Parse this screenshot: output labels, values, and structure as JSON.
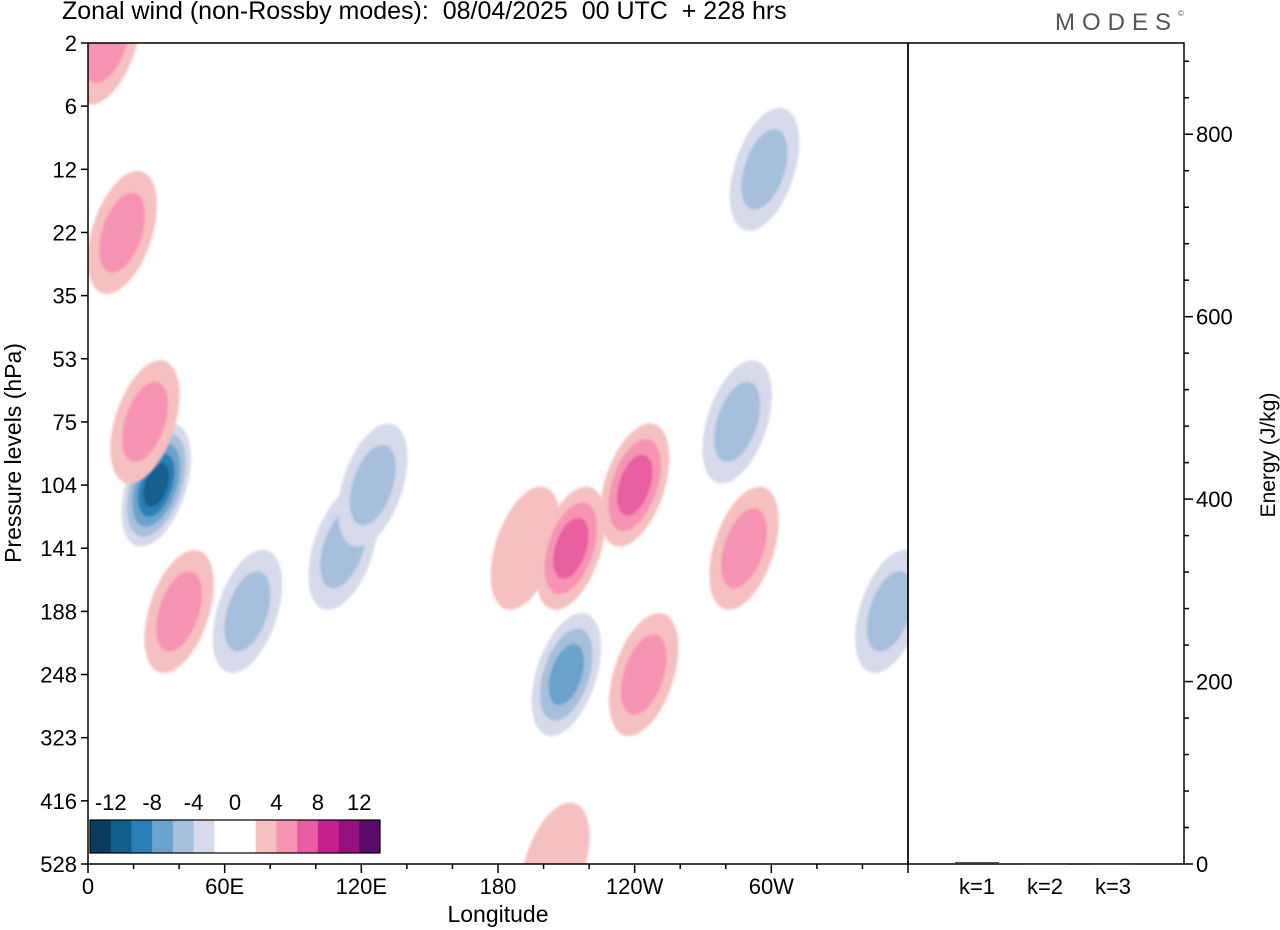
{
  "header": {
    "title": "Zonal wind (non-Rossby modes):  08/04/2025  00 UTC  + 228 hrs",
    "logo": "MODES"
  },
  "chart_data": [
    {
      "type": "heatmap",
      "title": "Zonal wind (non-Rossby modes):  08/04/2025  00 UTC  + 228 hrs",
      "xlabel": "Longitude",
      "ylabel": "Pressure levels (hPa)",
      "x_ticks": [
        "0",
        "60E",
        "120E",
        "180",
        "120W",
        "60W"
      ],
      "y_ticks": [
        "2",
        "6",
        "12",
        "22",
        "35",
        "53",
        "75",
        "104",
        "141",
        "188",
        "248",
        "323",
        "416",
        "528"
      ],
      "colorbar": {
        "labels": [
          "-12",
          "-8",
          "-4",
          "0",
          "4",
          "8",
          "12"
        ],
        "colors": [
          "#0b3c5d",
          "#125f8e",
          "#2b7fb6",
          "#6aa3cc",
          "#a6bfdc",
          "#d6daea",
          "#ffffff",
          "#ffffff",
          "#f7c0c0",
          "#f794b3",
          "#e85ea2",
          "#c62190",
          "#95107f",
          "#5a0a6b"
        ]
      },
      "features": [
        {
          "lon": 8,
          "level": "2",
          "value": 6
        },
        {
          "lon": 30,
          "level": "104",
          "value": -12
        },
        {
          "lon": 25,
          "level": "75",
          "value": 6
        },
        {
          "lon": 15,
          "level": "22",
          "value": 6
        },
        {
          "lon": 70,
          "level": "188",
          "value": -6
        },
        {
          "lon": 112,
          "level": "141",
          "value": -6
        },
        {
          "lon": 125,
          "level": "104",
          "value": -6
        },
        {
          "lon": 40,
          "level": "188",
          "value": 6
        },
        {
          "lon": 192,
          "level": "141",
          "value": 4
        },
        {
          "lon": 212,
          "level": "141",
          "value": 9
        },
        {
          "lon": 240,
          "level": "104",
          "value": 9
        },
        {
          "lon": 210,
          "level": "248",
          "value": -9
        },
        {
          "lon": 244,
          "level": "248",
          "value": 7
        },
        {
          "lon": 285,
          "level": "75",
          "value": -6
        },
        {
          "lon": 297,
          "level": "12",
          "value": -6
        },
        {
          "lon": 288,
          "level": "141",
          "value": 6
        },
        {
          "lon": 352,
          "level": "188",
          "value": -6
        },
        {
          "lon": 205,
          "level": "528",
          "value": 4
        }
      ]
    },
    {
      "type": "bar",
      "ylabel": "Energy (J/kg)",
      "categories": [
        "k=1",
        "k=2",
        "k=3"
      ],
      "values": [
        2,
        1,
        1
      ],
      "ylim": [
        0,
        900
      ],
      "y_ticks": [
        "0",
        "200",
        "400",
        "600",
        "800"
      ]
    }
  ]
}
